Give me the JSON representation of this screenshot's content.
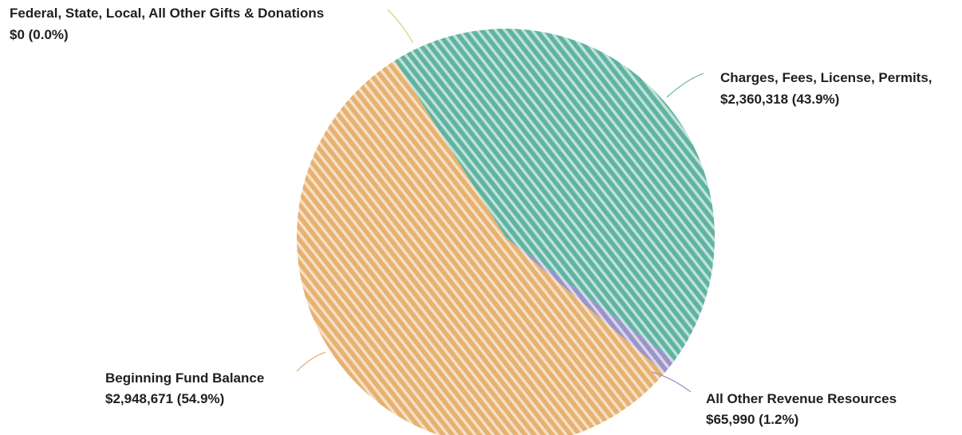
{
  "chart_data": {
    "type": "pie",
    "title": "",
    "legend": "none",
    "slices": [
      {
        "name": "Charges, Fees, License, Permits,",
        "value": 2360318,
        "value_label": "$2,360,318 (43.9%)",
        "percent": 43.9,
        "color": "#5fb3a1"
      },
      {
        "name": "All Other Revenue Resources",
        "value": 65990,
        "value_label": "$65,990 (1.2%)",
        "percent": 1.2,
        "color": "#9a94c9"
      },
      {
        "name": "Beginning Fund Balance",
        "value": 2948671,
        "value_label": "$2,948,671 (54.9%)",
        "percent": 54.9,
        "color": "#e7b170"
      },
      {
        "name": "Federal, State, Local, All Other Gifts & Donations",
        "value": 0,
        "value_label": "$0 (0.0%)",
        "percent": 0.0,
        "color": "#d8d27a"
      }
    ]
  }
}
